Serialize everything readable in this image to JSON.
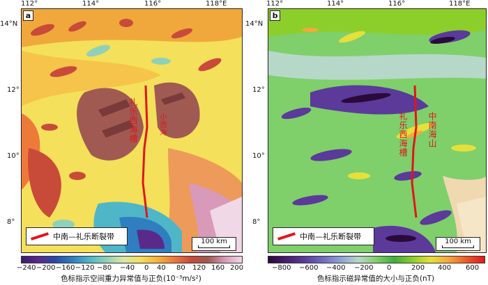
{
  "panels": [
    {
      "letter": "a",
      "lon_labels": [
        "112°",
        "114°",
        "116°",
        "118°E"
      ],
      "lat_labels": [
        "14°N",
        "12°",
        "10°",
        "8°"
      ],
      "legend_label": "中南—礼乐断裂带",
      "scale_label": "100 km",
      "fault_labels": [
        "礼乐西海槽",
        "小西海"
      ],
      "colorbar": {
        "ticks": [
          "−240",
          "−200",
          "−160",
          "−120",
          "−80",
          "−40",
          "0",
          "40",
          "80",
          "120",
          "160",
          "200"
        ],
        "caption": "色标指示空间重力异常值与正负(10⁻³m/s²)",
        "colors": [
          "#3a1d6e",
          "#5a2a8a",
          "#2a4aa8",
          "#2f7fc0",
          "#4fb6c8",
          "#8fd1b8",
          "#d8e6a6",
          "#f4e05a",
          "#f6b43a",
          "#ee7a3a",
          "#c84b3a",
          "#a05a52",
          "#d89ab8",
          "#f0d8e6"
        ]
      }
    },
    {
      "letter": "b",
      "lon_labels": [
        "112°",
        "114°",
        "116°",
        "118°E"
      ],
      "lat_labels": [
        "14°N",
        "12°",
        "10°",
        "8°"
      ],
      "legend_label": "中南—礼乐断裂带",
      "scale_label": "100 km",
      "fault_labels": [
        "礼乐西海槽",
        "中南海山"
      ],
      "colorbar": {
        "ticks": [
          "−800",
          "−600",
          "−400",
          "−200",
          "0",
          "200",
          "400",
          "600"
        ],
        "caption": "色标指示磁异常值的大小与正负(nT)",
        "colors": [
          "#2a0a3a",
          "#4a1c6e",
          "#5b3a9a",
          "#6f6abf",
          "#8fa0d6",
          "#b6d8c8",
          "#7fcf6a",
          "#3fae3a",
          "#8ccf2a",
          "#e6e03a",
          "#f6a83a",
          "#ee5a2a",
          "#e0161c"
        ]
      }
    }
  ],
  "colors": {
    "fault": "#e0161c"
  }
}
